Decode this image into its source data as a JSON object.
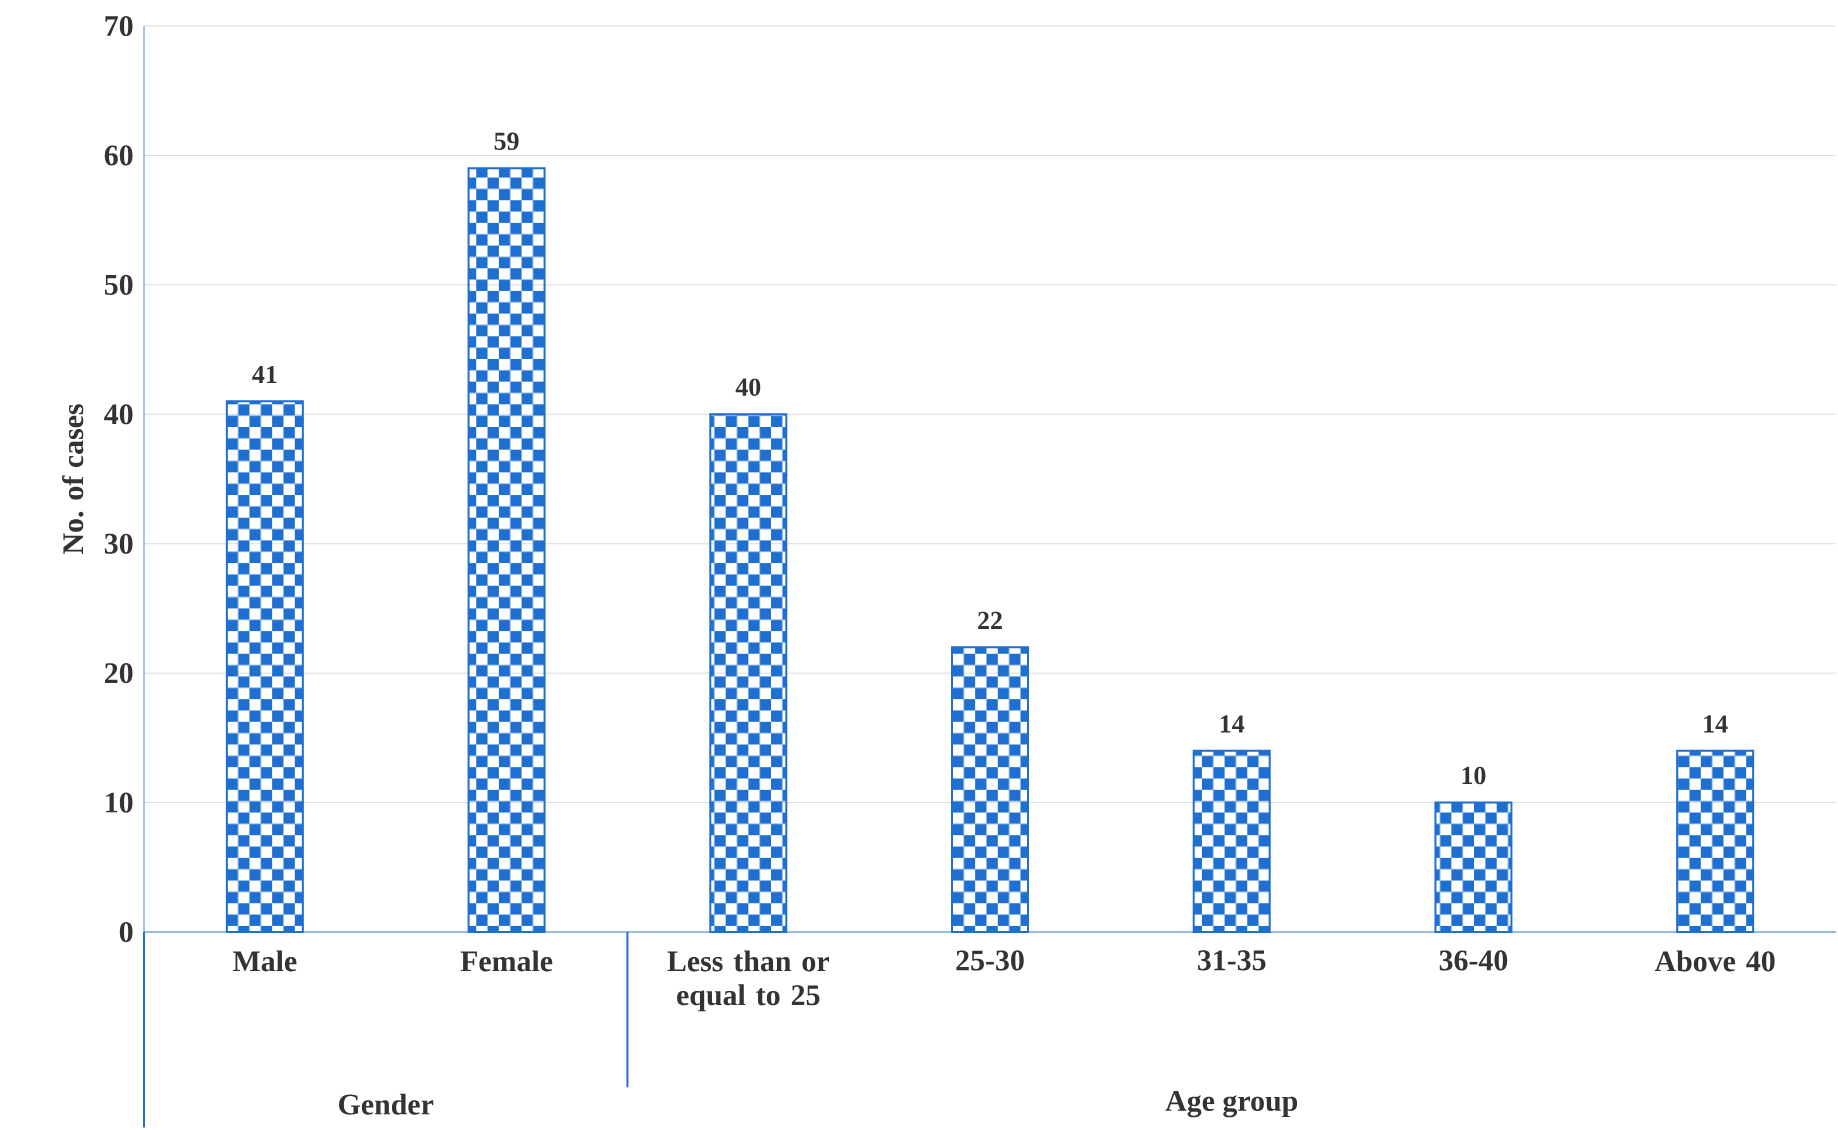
{
  "chart_data": {
    "type": "bar",
    "ylabel": "No. of cases",
    "categories": [
      "Male",
      "Female",
      "Less than or equal to 25",
      "25-30",
      "31-35",
      "36-40",
      "Above 40"
    ],
    "values": [
      41,
      59,
      40,
      22,
      14,
      10,
      14
    ],
    "color": "#1f6fd0",
    "ylim": [
      0,
      70
    ],
    "yticks": [
      0,
      10,
      20,
      30,
      40,
      50,
      60,
      70
    ],
    "grid": "y",
    "data_labels": true,
    "annotations": [
      "Gender",
      "Age group"
    ]
  }
}
